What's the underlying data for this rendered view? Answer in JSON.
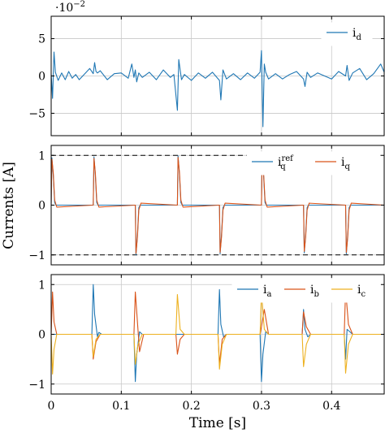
{
  "chart_data": [
    {
      "type": "line",
      "scale_label": "·10^{−2}",
      "xlim": [
        0,
        0.475
      ],
      "ylim": [
        -8,
        8
      ],
      "yticks": [
        "5",
        "0",
        "−5"
      ],
      "ytick_values": [
        5,
        0,
        -5
      ],
      "grid": true,
      "legend": "top-right",
      "series": [
        {
          "name": "i_d",
          "color": "#1f77b4",
          "x": [
            0,
            0.002,
            0.004,
            0.006,
            0.01,
            0.015,
            0.02,
            0.025,
            0.03,
            0.035,
            0.04,
            0.05,
            0.055,
            0.06,
            0.062,
            0.064,
            0.066,
            0.07,
            0.08,
            0.09,
            0.1,
            0.11,
            0.115,
            0.118,
            0.12,
            0.122,
            0.125,
            0.13,
            0.14,
            0.15,
            0.16,
            0.17,
            0.175,
            0.18,
            0.182,
            0.184,
            0.186,
            0.19,
            0.2,
            0.21,
            0.22,
            0.23,
            0.24,
            0.242,
            0.245,
            0.25,
            0.26,
            0.27,
            0.28,
            0.29,
            0.298,
            0.3,
            0.302,
            0.304,
            0.306,
            0.31,
            0.32,
            0.33,
            0.34,
            0.35,
            0.36,
            0.362,
            0.365,
            0.37,
            0.38,
            0.39,
            0.4,
            0.41,
            0.42,
            0.422,
            0.425,
            0.43,
            0.44,
            0.45,
            0.46,
            0.47,
            0.475
          ],
          "y": [
            0.3,
            -3.0,
            3.2,
            0.5,
            -0.6,
            0.4,
            -0.5,
            0.6,
            -0.3,
            0.2,
            -0.5,
            0.5,
            1.0,
            0.3,
            1.8,
            0.6,
            0.4,
            0.7,
            -0.5,
            0.3,
            0.4,
            -0.3,
            1.6,
            -0.2,
            0.8,
            -0.8,
            0.4,
            -0.2,
            0.5,
            -0.5,
            0.8,
            -0.2,
            0.2,
            -4.6,
            2.2,
            0.8,
            -0.5,
            0.2,
            -0.6,
            0.4,
            -0.3,
            0.5,
            -0.6,
            -3.2,
            0.8,
            -0.4,
            0.3,
            -0.5,
            0.4,
            -0.3,
            0.5,
            3.4,
            -6.8,
            1.6,
            0.5,
            -0.4,
            0.3,
            -0.4,
            0.2,
            0.6,
            -0.4,
            -1.4,
            0.5,
            -0.2,
            0.4,
            0.0,
            -0.4,
            0.6,
            0.0,
            1.4,
            -0.6,
            0.4,
            1.0,
            -0.5,
            0.3,
            1.6,
            0.5
          ]
        }
      ]
    },
    {
      "type": "line",
      "xlim": [
        0,
        0.475
      ],
      "ylim": [
        -1.2,
        1.2
      ],
      "yticks": [
        "1",
        "0",
        "−1"
      ],
      "ytick_values": [
        1,
        0,
        -1
      ],
      "reference_lines": [
        1,
        -1
      ],
      "grid": true,
      "legend": "top-right",
      "ylabel": "Currents [A]",
      "series": [
        {
          "name": "i_q^{ref}",
          "color": "#1f77b4",
          "x": [
            0,
            0.001,
            0.003,
            0.005,
            0.007,
            0.06,
            0.061,
            0.063,
            0.065,
            0.067,
            0.12,
            0.121,
            0.123,
            0.125,
            0.127,
            0.18,
            0.181,
            0.183,
            0.185,
            0.187,
            0.24,
            0.241,
            0.243,
            0.245,
            0.247,
            0.3,
            0.301,
            0.303,
            0.305,
            0.307,
            0.36,
            0.361,
            0.363,
            0.365,
            0.367,
            0.42,
            0.421,
            0.423,
            0.425,
            0.427,
            0.475
          ],
          "y": [
            0,
            0.95,
            0.6,
            0.05,
            0,
            0,
            0.97,
            0.6,
            0.05,
            0,
            0,
            -1.0,
            -0.6,
            -0.05,
            0,
            0,
            0.99,
            0.6,
            0.05,
            0,
            0,
            -0.98,
            -0.6,
            -0.05,
            0,
            0,
            1.0,
            0.6,
            0.05,
            0,
            0,
            -0.96,
            -0.6,
            -0.05,
            0,
            0,
            -0.98,
            -0.6,
            -0.05,
            0,
            0
          ]
        },
        {
          "name": "i_q",
          "color": "#d95319",
          "x": [
            0,
            0.001,
            0.003,
            0.005,
            0.008,
            0.06,
            0.061,
            0.063,
            0.065,
            0.068,
            0.12,
            0.121,
            0.123,
            0.125,
            0.128,
            0.18,
            0.181,
            0.183,
            0.185,
            0.188,
            0.24,
            0.241,
            0.243,
            0.245,
            0.248,
            0.3,
            0.301,
            0.303,
            0.305,
            0.308,
            0.36,
            0.361,
            0.363,
            0.365,
            0.368,
            0.42,
            0.421,
            0.423,
            0.425,
            0.428,
            0.475
          ],
          "y": [
            0,
            0.92,
            0.65,
            0.1,
            -0.04,
            0,
            0.94,
            0.65,
            0.1,
            -0.04,
            0,
            -0.97,
            -0.65,
            -0.1,
            0.04,
            0,
            0.96,
            0.65,
            0.1,
            -0.04,
            0,
            -0.95,
            -0.65,
            -0.1,
            0.04,
            0,
            0.97,
            0.65,
            0.1,
            -0.04,
            0,
            -0.93,
            -0.65,
            -0.1,
            0.04,
            0,
            -0.95,
            -0.65,
            -0.1,
            0.04,
            0
          ]
        }
      ]
    },
    {
      "type": "line",
      "xlim": [
        0,
        0.475
      ],
      "ylim": [
        -1.2,
        1.2
      ],
      "yticks": [
        "1",
        "0",
        "−1"
      ],
      "ytick_values": [
        1,
        0,
        -1
      ],
      "xticks": [
        "0",
        "0.1",
        "0.2",
        "0.3",
        "0.4"
      ],
      "xtick_values": [
        0,
        0.1,
        0.2,
        0.3,
        0.4
      ],
      "xlabel": "Time [s]",
      "grid": true,
      "legend": "top-right",
      "series": [
        {
          "name": "i_a",
          "color": "#1f77b4",
          "x": [
            0,
            0.058,
            0.06,
            0.062,
            0.066,
            0.068,
            0.072,
            0.118,
            0.12,
            0.122,
            0.126,
            0.13,
            0.178,
            0.18,
            0.238,
            0.24,
            0.242,
            0.246,
            0.25,
            0.298,
            0.3,
            0.302,
            0.306,
            0.31,
            0.358,
            0.36,
            0.362,
            0.366,
            0.37,
            0.418,
            0.42,
            0.422,
            0.426,
            0.43,
            0.475
          ],
          "y": [
            0,
            0,
            1.0,
            0.4,
            -0.05,
            0.04,
            0,
            0,
            -0.95,
            -0.4,
            0.05,
            0,
            0,
            0,
            0,
            0.9,
            0.2,
            -0.05,
            0,
            0,
            -0.95,
            -0.4,
            0.05,
            0,
            0,
            0.5,
            0.1,
            -0.05,
            0,
            0,
            -0.5,
            0.1,
            0.05,
            0,
            0
          ]
        },
        {
          "name": "i_b",
          "color": "#d95319",
          "x": [
            0,
            0.002,
            0.004,
            0.008,
            0.058,
            0.06,
            0.064,
            0.07,
            0.118,
            0.12,
            0.126,
            0.132,
            0.178,
            0.18,
            0.184,
            0.19,
            0.238,
            0.24,
            0.244,
            0.25,
            0.298,
            0.3,
            0.304,
            0.31,
            0.358,
            0.36,
            0.364,
            0.37,
            0.418,
            0.42,
            0.424,
            0.43,
            0.475
          ],
          "y": [
            0,
            0.85,
            0.25,
            0,
            0,
            -0.5,
            -0.15,
            0,
            0,
            0.85,
            -0.35,
            0,
            0,
            -0.4,
            -0.1,
            0,
            0,
            -0.6,
            -0.1,
            0,
            0,
            0.15,
            0.5,
            0,
            0,
            0.45,
            0.15,
            0,
            0,
            0.9,
            0.2,
            0,
            0
          ]
        },
        {
          "name": "i_c",
          "color": "#edb120",
          "x": [
            0,
            0.002,
            0.004,
            0.008,
            0.058,
            0.06,
            0.064,
            0.07,
            0.118,
            0.12,
            0.124,
            0.13,
            0.178,
            0.18,
            0.184,
            0.19,
            0.238,
            0.24,
            0.244,
            0.25,
            0.298,
            0.3,
            0.304,
            0.31,
            0.358,
            0.36,
            0.364,
            0.37,
            0.418,
            0.42,
            0.424,
            0.43,
            0.475
          ],
          "y": [
            0,
            -0.8,
            -0.3,
            0,
            0,
            -0.45,
            -0.1,
            0,
            0,
            -0.6,
            -0.2,
            0,
            0,
            0.8,
            0.1,
            0,
            0,
            -0.7,
            -0.2,
            0,
            0,
            0.85,
            0.1,
            0,
            0,
            -0.65,
            -0.2,
            0,
            0,
            -0.78,
            -0.2,
            0,
            0
          ]
        }
      ]
    }
  ]
}
